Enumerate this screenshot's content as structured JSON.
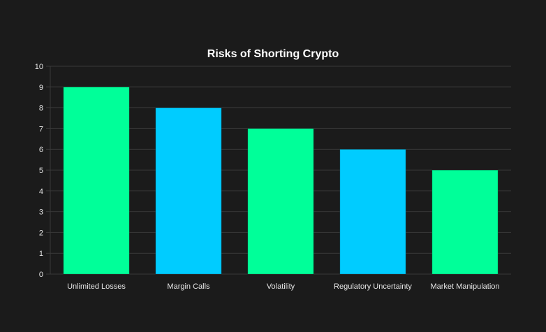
{
  "chart_data": {
    "type": "bar",
    "title": "Risks of Shorting Crypto",
    "categories": [
      "Unlimited Losses",
      "Margin Calls",
      "Volatility",
      "Regulatory Uncertainty",
      "Market Manipulation"
    ],
    "values": [
      9,
      8,
      7,
      6,
      5
    ],
    "colors": [
      "#00ff99",
      "#00ccff",
      "#00ff99",
      "#00ccff",
      "#00ff99"
    ],
    "xlabel": "",
    "ylabel": "",
    "ylim": [
      0,
      10
    ],
    "yticks": [
      0,
      1,
      2,
      3,
      4,
      5,
      6,
      7,
      8,
      9,
      10
    ],
    "grid": true,
    "legend": "none",
    "background": "#1b1b1b"
  }
}
